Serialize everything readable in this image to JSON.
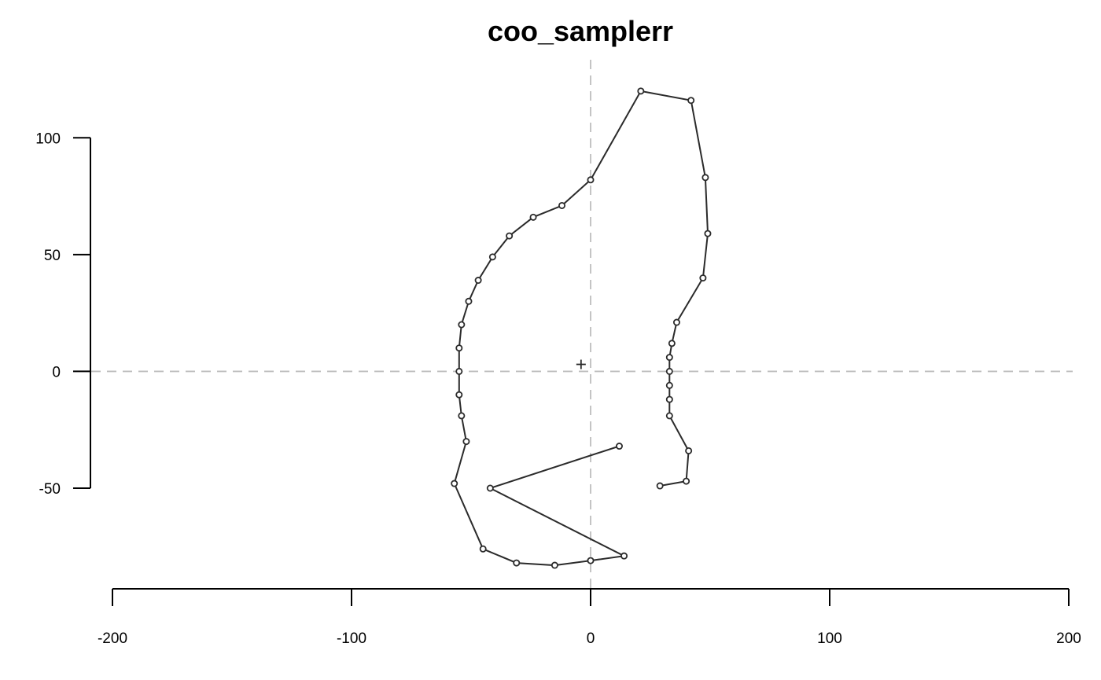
{
  "chart_data": {
    "type": "line",
    "title": "coo_samplerr",
    "xlabel": "",
    "ylabel": "",
    "xlim": [
      -200,
      200
    ],
    "ylim": [
      -85,
      125
    ],
    "x_ticks": [
      -200,
      -100,
      0,
      100,
      200
    ],
    "y_ticks": [
      -50,
      0,
      50,
      100
    ],
    "guides": {
      "x": 0,
      "y": 0,
      "style": "dashed",
      "color": "#bdbdbd"
    },
    "centroid": {
      "x": -4,
      "y": 3
    },
    "series": [
      {
        "color": "#2b2b2b",
        "markers": "open-circle",
        "points": [
          [
            29,
            -49
          ],
          [
            40,
            -47
          ],
          [
            41,
            -34
          ],
          [
            33,
            -19
          ],
          [
            33,
            -12
          ],
          [
            33,
            -6
          ],
          [
            33,
            0
          ],
          [
            33,
            6
          ],
          [
            34,
            12
          ],
          [
            36,
            21
          ],
          [
            47,
            40
          ],
          [
            49,
            59
          ],
          [
            48,
            83
          ],
          [
            42,
            116
          ],
          [
            21,
            120
          ],
          [
            0,
            82
          ],
          [
            -12,
            71
          ],
          [
            -24,
            66
          ],
          [
            -34,
            58
          ],
          [
            -41,
            49
          ],
          [
            -47,
            39
          ],
          [
            -51,
            30
          ],
          [
            -54,
            20
          ],
          [
            -55,
            10
          ],
          [
            -55,
            0
          ],
          [
            -55,
            -10
          ],
          [
            -54,
            -19
          ],
          [
            -52,
            -30
          ],
          [
            -57,
            -48
          ],
          [
            -45,
            -76
          ],
          [
            -31,
            -82
          ],
          [
            -15,
            -83
          ],
          [
            0,
            -81
          ],
          [
            14,
            -79
          ],
          [
            -42,
            -50
          ],
          [
            12,
            -32
          ]
        ]
      }
    ]
  }
}
